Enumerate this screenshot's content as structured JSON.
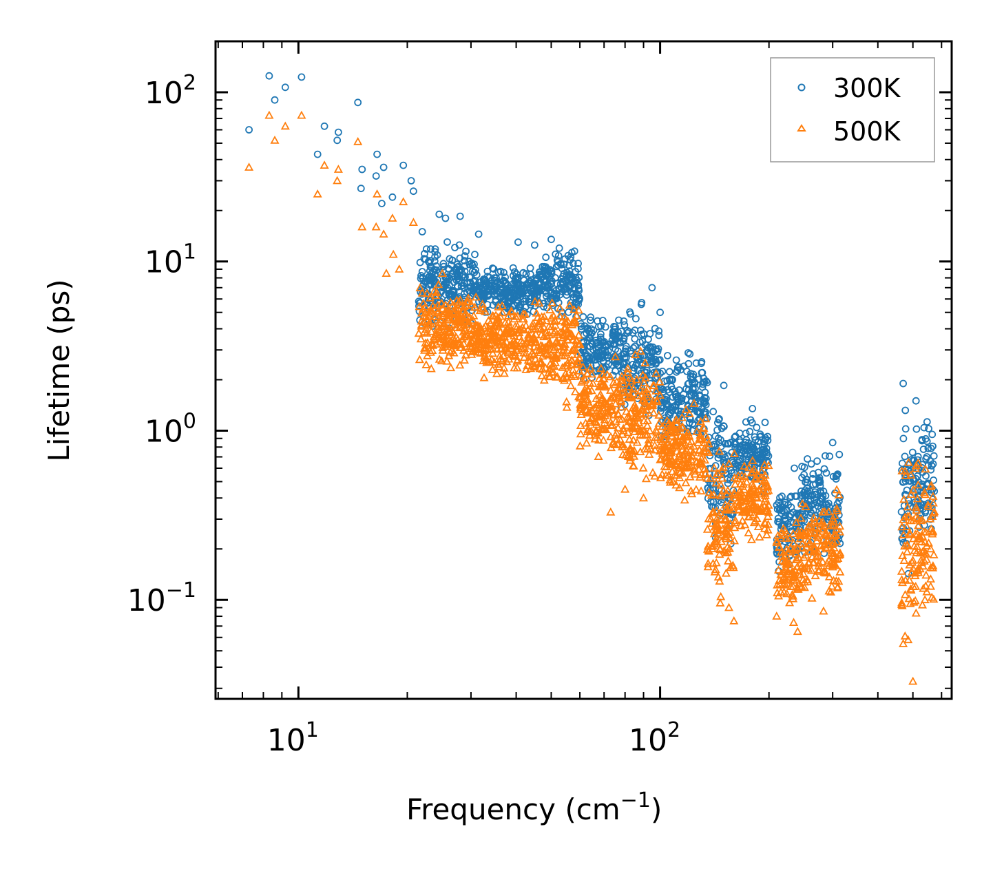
{
  "chart_data": {
    "type": "scatter",
    "xscale": "log",
    "yscale": "log",
    "xlabel": "Frequency (cm",
    "xlabel_sup": "−1",
    "xlabel_close": ")",
    "ylabel": "Lifetime (ps)",
    "xlim": [
      5.9,
      640
    ],
    "ylim": [
      0.026,
      200
    ],
    "x_ticks": [
      {
        "value": 10,
        "base": "10",
        "exp": "1"
      },
      {
        "value": 100,
        "base": "10",
        "exp": "2"
      }
    ],
    "y_ticks": [
      {
        "value": 0.1,
        "base": "10",
        "exp": "−1"
      },
      {
        "value": 1,
        "base": "10",
        "exp": "0"
      },
      {
        "value": 10,
        "base": "10",
        "exp": "1"
      },
      {
        "value": 100,
        "base": "10",
        "exp": "2"
      }
    ],
    "legend_position": "top-right",
    "series": [
      {
        "name": "300K",
        "marker": "circle",
        "color": "#1f77b4",
        "sample_points": [
          [
            7.3,
            60
          ],
          [
            8.3,
            125
          ],
          [
            8.6,
            90
          ],
          [
            9.2,
            107
          ],
          [
            10.2,
            123
          ],
          [
            11.3,
            43
          ],
          [
            11.8,
            63
          ],
          [
            12.8,
            52
          ],
          [
            12.9,
            58
          ],
          [
            14.6,
            87
          ],
          [
            15.0,
            35
          ],
          [
            14.9,
            27
          ],
          [
            16.5,
            43
          ],
          [
            16.4,
            32
          ],
          [
            17.2,
            36
          ],
          [
            17.0,
            22
          ],
          [
            18.2,
            24
          ],
          [
            19.5,
            37
          ],
          [
            20.5,
            30
          ],
          [
            20.8,
            26
          ],
          [
            22.0,
            15
          ],
          [
            24.5,
            19
          ],
          [
            25.5,
            18
          ],
          [
            28.0,
            18.5
          ],
          [
            31.5,
            14.5
          ],
          [
            40.5,
            13
          ],
          [
            45.0,
            12.5
          ],
          [
            50.0,
            13.5
          ],
          [
            58.0,
            11.5
          ],
          [
            95.0,
            7
          ],
          [
            100.0,
            5
          ],
          [
            130.0,
            2.5
          ],
          [
            150.0,
            1.85
          ],
          [
            180.0,
            1.35
          ],
          [
            235.0,
            0.6
          ],
          [
            250.0,
            0.55
          ],
          [
            300.0,
            0.85
          ],
          [
            470.0,
            1.9
          ],
          [
            510.0,
            1.5
          ],
          [
            560.0,
            0.3
          ]
        ],
        "clusters": [
          {
            "x_from": 21.5,
            "x_to": 31,
            "y_lo": 3.6,
            "y_hi": 15
          },
          {
            "x_from": 31,
            "x_to": 47,
            "y_lo": 4.5,
            "y_hi": 10
          },
          {
            "x_from": 47,
            "x_to": 60,
            "y_lo": 4,
            "y_hi": 13
          },
          {
            "x_from": 60,
            "x_to": 78,
            "y_lo": 1.6,
            "y_hi": 5.5
          },
          {
            "x_from": 78,
            "x_to": 100,
            "y_lo": 0.9,
            "y_hi": 6.5
          },
          {
            "x_from": 100,
            "x_to": 135,
            "y_lo": 0.7,
            "y_hi": 3.5
          },
          {
            "x_from": 135,
            "x_to": 160,
            "y_lo": 0.15,
            "y_hi": 1.85
          },
          {
            "x_from": 160,
            "x_to": 200,
            "y_lo": 0.4,
            "y_hi": 1.3
          },
          {
            "x_from": 210,
            "x_to": 245,
            "y_lo": 0.12,
            "y_hi": 0.6
          },
          {
            "x_from": 245,
            "x_to": 315,
            "y_lo": 0.15,
            "y_hi": 0.85
          },
          {
            "x_from": 465,
            "x_to": 500,
            "y_lo": 0.12,
            "y_hi": 1.9
          },
          {
            "x_from": 500,
            "x_to": 575,
            "y_lo": 0.2,
            "y_hi": 1.5
          }
        ]
      },
      {
        "name": "500K",
        "marker": "triangle",
        "color": "#ff7f0e",
        "sample_points": [
          [
            7.3,
            36
          ],
          [
            8.3,
            73
          ],
          [
            8.6,
            52
          ],
          [
            9.2,
            63
          ],
          [
            10.2,
            73
          ],
          [
            11.3,
            25
          ],
          [
            11.8,
            37
          ],
          [
            12.8,
            30
          ],
          [
            12.9,
            35
          ],
          [
            14.6,
            51
          ],
          [
            15.0,
            16
          ],
          [
            16.5,
            25
          ],
          [
            16.4,
            16
          ],
          [
            17.2,
            14.5
          ],
          [
            18.2,
            18
          ],
          [
            18.3,
            11
          ],
          [
            19.5,
            22.5
          ],
          [
            20.8,
            17
          ],
          [
            17.5,
            8.5
          ],
          [
            19.0,
            9
          ],
          [
            22.0,
            6.5
          ],
          [
            25.0,
            8.5
          ],
          [
            73.0,
            0.33
          ],
          [
            80.0,
            0.45
          ],
          [
            90.0,
            0.4
          ],
          [
            155.0,
            0.09
          ],
          [
            160.0,
            0.075
          ],
          [
            210.0,
            0.08
          ],
          [
            240.0,
            0.065
          ],
          [
            470.0,
            0.055
          ],
          [
            500.0,
            0.033
          ],
          [
            540.0,
            0.1
          ],
          [
            560.0,
            0.2
          ]
        ],
        "clusters": [
          {
            "x_from": 21.5,
            "x_to": 31,
            "y_lo": 2,
            "y_hi": 8
          },
          {
            "x_from": 31,
            "x_to": 47,
            "y_lo": 1.8,
            "y_hi": 6.5
          },
          {
            "x_from": 47,
            "x_to": 60,
            "y_lo": 1.2,
            "y_hi": 8
          },
          {
            "x_from": 60,
            "x_to": 78,
            "y_lo": 0.6,
            "y_hi": 3.2
          },
          {
            "x_from": 78,
            "x_to": 100,
            "y_lo": 0.38,
            "y_hi": 3.5
          },
          {
            "x_from": 100,
            "x_to": 135,
            "y_lo": 0.35,
            "y_hi": 1.6
          },
          {
            "x_from": 135,
            "x_to": 160,
            "y_lo": 0.075,
            "y_hi": 1
          },
          {
            "x_from": 160,
            "x_to": 200,
            "y_lo": 0.2,
            "y_hi": 0.8
          },
          {
            "x_from": 210,
            "x_to": 245,
            "y_lo": 0.07,
            "y_hi": 0.35
          },
          {
            "x_from": 245,
            "x_to": 315,
            "y_lo": 0.08,
            "y_hi": 0.5
          },
          {
            "x_from": 465,
            "x_to": 500,
            "y_lo": 0.033,
            "y_hi": 1.1
          },
          {
            "x_from": 500,
            "x_to": 575,
            "y_lo": 0.05,
            "y_hi": 1.0
          }
        ]
      }
    ]
  }
}
